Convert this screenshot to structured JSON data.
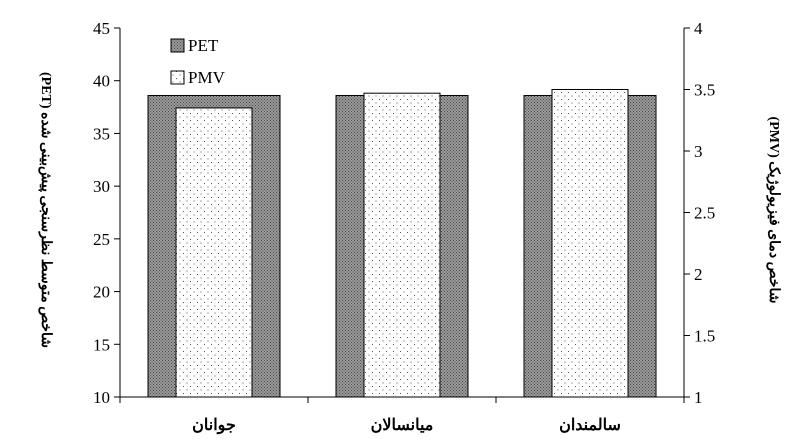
{
  "chart_data": {
    "type": "bar",
    "categories": [
      "جوانان",
      "میانسالان",
      "سالمندان"
    ],
    "series": [
      {
        "name": "PET",
        "axis": "left",
        "values": [
          38.6,
          38.6,
          38.6
        ]
      },
      {
        "name": "PMV",
        "axis": "right",
        "values": [
          3.35,
          3.47,
          3.5
        ]
      }
    ],
    "ylabel_left": "شاخص متوسط نظرسنجی پیش‌بینی شده (PET)",
    "ylabel_right": "شاخص دمای فیزیولوژیک (PMV)",
    "ylim_left": [
      10,
      45
    ],
    "ylim_right": [
      1,
      4
    ],
    "yticks_left": [
      "10",
      "15",
      "20",
      "25",
      "30",
      "35",
      "40",
      "45"
    ],
    "yticks_right": [
      "1",
      "1.5",
      "2",
      "2.5",
      "3",
      "3.5",
      "4"
    ],
    "grid": false,
    "legend_placement": "top-left",
    "legend": [
      {
        "name": "PET",
        "label": "PET"
      },
      {
        "name": "PMV",
        "label": "PMV"
      }
    ],
    "colors": {
      "pet_fill": "#8c8c8c",
      "pmv_fill": "#ffffff",
      "dots": "#666666",
      "axis": "#000000"
    }
  }
}
